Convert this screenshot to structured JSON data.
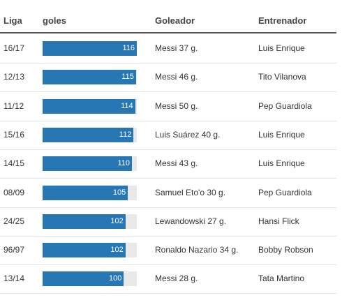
{
  "table": {
    "headers": [
      "Liga",
      "goles",
      "Goleador",
      "Entrenador"
    ],
    "rows": [
      [
        "16/17",
        116,
        "Messi 37 g.",
        "Luis Enrique"
      ],
      [
        "12/13",
        115,
        "Messi 46 g.",
        "Tito Vilanova"
      ],
      [
        "11/12",
        114,
        "Messi 50 g.",
        "Pep Guardiola"
      ],
      [
        "15/16",
        112,
        "Luis Suárez 40 g.",
        "Luis Enrique"
      ],
      [
        "14/15",
        110,
        "Messi 43 g.",
        "Luis Enrique"
      ],
      [
        "08/09",
        105,
        "Samuel Eto'o 30 g.",
        "Pep Guardiola"
      ],
      [
        "24/25",
        102,
        "Lewandowski 27 g.",
        "Hansi Flick"
      ],
      [
        "96/97",
        102,
        "Ronaldo Nazario 34 g.",
        "Bobby Robson"
      ],
      [
        "13/14",
        100,
        "Messi 28 g.",
        "Tata Martino"
      ]
    ]
  }
}
